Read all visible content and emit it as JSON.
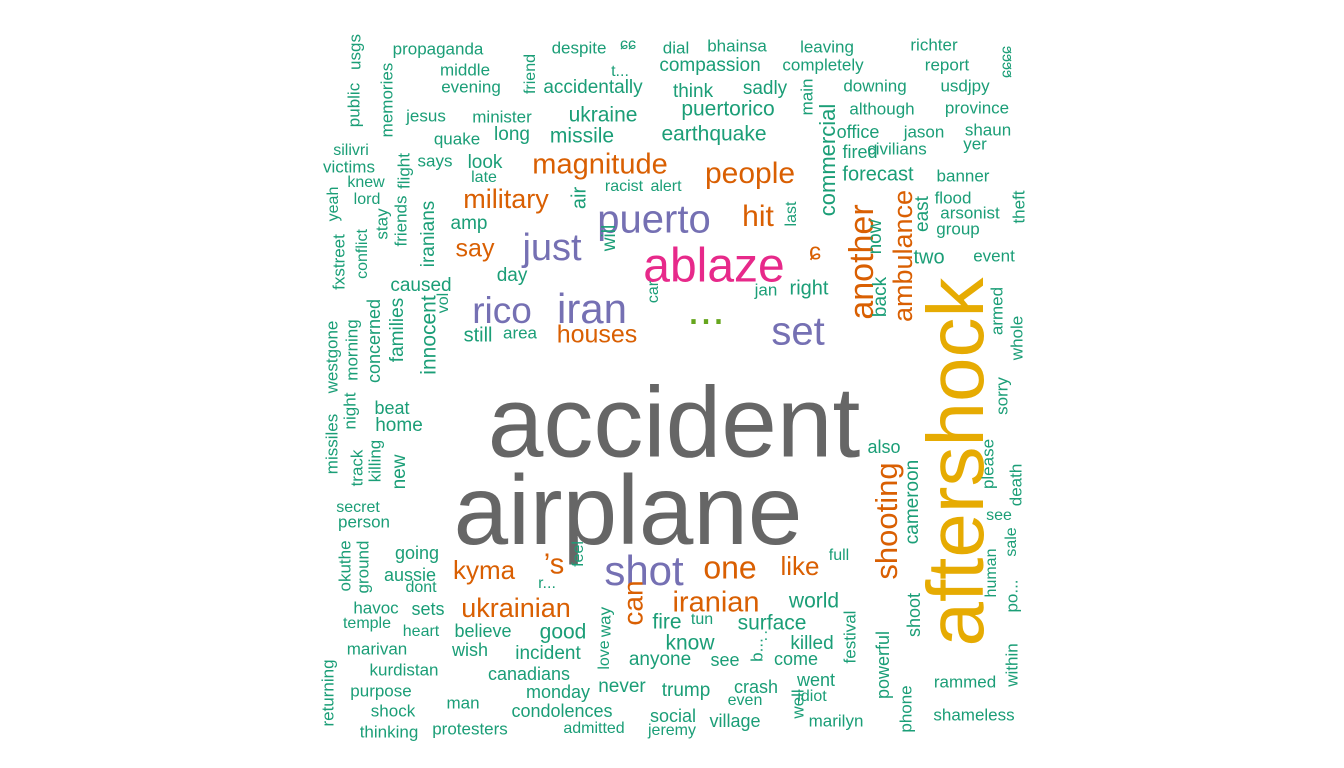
{
  "chart_data": {
    "type": "wordcloud",
    "palette": {
      "gray": "#666666",
      "gold": "#e6ab02",
      "pink": "#e7298a",
      "purple": "#7570b3",
      "orange": "#d95f02",
      "green": "#66a61e",
      "teal": "#1b9e77"
    },
    "words": [
      {
        "text": "accident",
        "weight": 100,
        "color_group": "gray"
      },
      {
        "text": "airplane",
        "weight": 98,
        "color_group": "gray"
      },
      {
        "text": "aftershock",
        "weight": 82,
        "color_group": "gold"
      },
      {
        "text": "ablaze",
        "weight": 48,
        "color_group": "pink"
      },
      {
        "text": "...",
        "weight": 45,
        "color_group": "green"
      },
      {
        "text": "shot",
        "weight": 42,
        "color_group": "purple"
      },
      {
        "text": "iran",
        "weight": 42,
        "color_group": "purple"
      },
      {
        "text": "puerto",
        "weight": 40,
        "color_group": "purple"
      },
      {
        "text": "set",
        "weight": 40,
        "color_group": "purple"
      },
      {
        "text": "just",
        "weight": 38,
        "color_group": "purple"
      },
      {
        "text": "rico",
        "weight": 37,
        "color_group": "purple"
      },
      {
        "text": "another",
        "weight": 34,
        "color_group": "orange"
      },
      {
        "text": "one",
        "weight": 32,
        "color_group": "orange"
      },
      {
        "text": "shooting",
        "weight": 31,
        "color_group": "orange"
      },
      {
        "text": "people",
        "weight": 30,
        "color_group": "orange"
      },
      {
        "text": "hit",
        "weight": 30,
        "color_group": "orange"
      },
      {
        "text": "magnitude",
        "weight": 29,
        "color_group": "orange"
      },
      {
        "text": "iranian",
        "weight": 29,
        "color_group": "orange"
      },
      {
        "text": "’s",
        "weight": 29,
        "color_group": "orange"
      },
      {
        "text": "can",
        "weight": 28,
        "color_group": "orange"
      },
      {
        "text": "ukrainian",
        "weight": 27,
        "color_group": "orange"
      },
      {
        "text": "military",
        "weight": 27,
        "color_group": "orange"
      },
      {
        "text": "ambulance",
        "weight": 27,
        "color_group": "orange"
      },
      {
        "text": "kyma",
        "weight": 26,
        "color_group": "orange"
      },
      {
        "text": "like",
        "weight": 26,
        "color_group": "orange"
      },
      {
        "text": "say",
        "weight": 25,
        "color_group": "orange"
      },
      {
        "text": "houses",
        "weight": 25,
        "color_group": "orange"
      },
      {
        "text": "ɕ",
        "weight": 24,
        "color_group": "orange"
      },
      {
        "text": "commercial",
        "weight": 22,
        "color_group": "teal"
      },
      {
        "text": "earthquake",
        "weight": 21,
        "color_group": "teal"
      },
      {
        "text": "ukraine",
        "weight": 21,
        "color_group": "teal"
      },
      {
        "text": "missile",
        "weight": 21,
        "color_group": "teal"
      },
      {
        "text": "puertorico",
        "weight": 21,
        "color_group": "teal"
      },
      {
        "text": "innocent",
        "weight": 21,
        "color_group": "teal"
      },
      {
        "text": "world",
        "weight": 21,
        "color_group": "teal"
      },
      {
        "text": "surface",
        "weight": 21,
        "color_group": "teal"
      },
      {
        "text": "know",
        "weight": 21,
        "color_group": "teal"
      },
      {
        "text": "good",
        "weight": 21,
        "color_group": "teal"
      },
      {
        "text": "fire",
        "weight": 21,
        "color_group": "teal"
      },
      {
        "text": "right",
        "weight": 20,
        "color_group": "teal"
      },
      {
        "text": "two",
        "weight": 20,
        "color_group": "teal"
      },
      {
        "text": "forecast",
        "weight": 20,
        "color_group": "teal"
      },
      {
        "text": "air",
        "weight": 20,
        "color_group": "teal"
      },
      {
        "text": "still",
        "weight": 20,
        "color_group": "teal"
      },
      {
        "text": "caused",
        "weight": 19,
        "color_group": "teal"
      },
      {
        "text": "day",
        "weight": 19,
        "color_group": "teal"
      },
      {
        "text": "families",
        "weight": 19,
        "color_group": "teal"
      },
      {
        "text": "home",
        "weight": 19,
        "color_group": "teal"
      },
      {
        "text": "never",
        "weight": 19,
        "color_group": "teal"
      },
      {
        "text": "trump",
        "weight": 19,
        "color_group": "teal"
      },
      {
        "text": "anyone",
        "weight": 19,
        "color_group": "teal"
      },
      {
        "text": "incident",
        "weight": 19,
        "color_group": "teal"
      },
      {
        "text": "will",
        "weight": 19,
        "color_group": "teal"
      },
      {
        "text": "killed",
        "weight": 19,
        "color_group": "teal"
      },
      {
        "text": "compassion",
        "weight": 19,
        "color_group": "teal"
      },
      {
        "text": "accidentally",
        "weight": 19,
        "color_group": "teal"
      },
      {
        "text": "think",
        "weight": 19,
        "color_group": "teal"
      },
      {
        "text": "sadly",
        "weight": 19,
        "color_group": "teal"
      },
      {
        "text": "long",
        "weight": 19,
        "color_group": "teal"
      },
      {
        "text": "look",
        "weight": 19,
        "color_group": "teal"
      },
      {
        "text": "amp",
        "weight": 19,
        "color_group": "teal"
      },
      {
        "text": "cameroon",
        "weight": 19,
        "color_group": "teal"
      },
      {
        "text": "now",
        "weight": 19,
        "color_group": "teal"
      },
      {
        "text": "back",
        "weight": 19,
        "color_group": "teal"
      },
      {
        "text": "new",
        "weight": 19,
        "color_group": "teal"
      },
      {
        "text": "iranians",
        "weight": 19,
        "color_group": "teal"
      },
      {
        "text": "east",
        "weight": 19,
        "color_group": "teal"
      },
      {
        "text": "also",
        "weight": 18,
        "color_group": "teal"
      },
      {
        "text": "powerful",
        "weight": 18,
        "color_group": "teal"
      },
      {
        "text": "going",
        "weight": 18,
        "color_group": "teal"
      },
      {
        "text": "aussie",
        "weight": 18,
        "color_group": "teal"
      },
      {
        "text": "beat",
        "weight": 18,
        "color_group": "teal"
      },
      {
        "text": "concerned",
        "weight": 18,
        "color_group": "teal"
      },
      {
        "text": "wish",
        "weight": 18,
        "color_group": "teal"
      },
      {
        "text": "believe",
        "weight": 18,
        "color_group": "teal"
      },
      {
        "text": "sets",
        "weight": 18,
        "color_group": "teal"
      },
      {
        "text": "canadians",
        "weight": 18,
        "color_group": "teal"
      },
      {
        "text": "monday",
        "weight": 18,
        "color_group": "teal"
      },
      {
        "text": "condolences",
        "weight": 18,
        "color_group": "teal"
      },
      {
        "text": "social",
        "weight": 18,
        "color_group": "teal"
      },
      {
        "text": "village",
        "weight": 18,
        "color_group": "teal"
      },
      {
        "text": "crash",
        "weight": 18,
        "color_group": "teal"
      },
      {
        "text": "see",
        "weight": 18,
        "color_group": "teal"
      },
      {
        "text": "come",
        "weight": 18,
        "color_group": "teal"
      },
      {
        "text": "went",
        "weight": 18,
        "color_group": "teal"
      },
      {
        "text": "shoot",
        "weight": 18,
        "color_group": "teal"
      },
      {
        "text": "office",
        "weight": 18,
        "color_group": "teal"
      },
      {
        "text": "fired",
        "weight": 18,
        "color_group": "teal"
      },
      {
        "text": "main",
        "weight": 17,
        "color_group": "teal"
      },
      {
        "text": "middle",
        "weight": 17,
        "color_group": "teal"
      },
      {
        "text": "evening",
        "weight": 17,
        "color_group": "teal"
      },
      {
        "text": "minister",
        "weight": 17,
        "color_group": "teal"
      },
      {
        "text": "quake",
        "weight": 17,
        "color_group": "teal"
      },
      {
        "text": "says",
        "weight": 17,
        "color_group": "teal"
      },
      {
        "text": "jesus",
        "weight": 17,
        "color_group": "teal"
      },
      {
        "text": "propaganda",
        "weight": 17,
        "color_group": "teal"
      },
      {
        "text": "despite",
        "weight": 17,
        "color_group": "teal"
      },
      {
        "text": "dial",
        "weight": 17,
        "color_group": "teal"
      },
      {
        "text": "bhainsa",
        "weight": 17,
        "color_group": "teal"
      },
      {
        "text": "leaving",
        "weight": 17,
        "color_group": "teal"
      },
      {
        "text": "richter",
        "weight": 17,
        "color_group": "teal"
      },
      {
        "text": "report",
        "weight": 17,
        "color_group": "teal"
      },
      {
        "text": "completely",
        "weight": 17,
        "color_group": "teal"
      },
      {
        "text": "downing",
        "weight": 17,
        "color_group": "teal"
      },
      {
        "text": "usdjpy",
        "weight": 17,
        "color_group": "teal"
      },
      {
        "text": "although",
        "weight": 17,
        "color_group": "teal"
      },
      {
        "text": "province",
        "weight": 17,
        "color_group": "teal"
      },
      {
        "text": "jason",
        "weight": 17,
        "color_group": "teal"
      },
      {
        "text": "shaun",
        "weight": 17,
        "color_group": "teal"
      },
      {
        "text": "civilians",
        "weight": 17,
        "color_group": "teal"
      },
      {
        "text": "yer",
        "weight": 17,
        "color_group": "teal"
      },
      {
        "text": "banner",
        "weight": 17,
        "color_group": "teal"
      },
      {
        "text": "flood",
        "weight": 17,
        "color_group": "teal"
      },
      {
        "text": "arsonist",
        "weight": 17,
        "color_group": "teal"
      },
      {
        "text": "group",
        "weight": 17,
        "color_group": "teal"
      },
      {
        "text": "theft",
        "weight": 17,
        "color_group": "teal"
      },
      {
        "text": "event",
        "weight": 17,
        "color_group": "teal"
      },
      {
        "text": "racist",
        "weight": 17,
        "color_group": "teal"
      },
      {
        "text": "alert",
        "weight": 17,
        "color_group": "teal"
      },
      {
        "text": "late",
        "weight": 16,
        "color_group": "teal"
      },
      {
        "text": "last",
        "weight": 16,
        "color_group": "teal"
      },
      {
        "text": "car",
        "weight": 16,
        "color_group": "teal"
      },
      {
        "text": "jan",
        "weight": 17,
        "color_group": "teal"
      },
      {
        "text": "area",
        "weight": 17,
        "color_group": "teal"
      },
      {
        "text": "vol",
        "weight": 16,
        "color_group": "teal"
      },
      {
        "text": "armed",
        "weight": 17,
        "color_group": "teal"
      },
      {
        "text": "whole",
        "weight": 17,
        "color_group": "teal"
      },
      {
        "text": "sorry",
        "weight": 17,
        "color_group": "teal"
      },
      {
        "text": "please",
        "weight": 17,
        "color_group": "teal"
      },
      {
        "text": "death",
        "weight": 17,
        "color_group": "teal"
      },
      {
        "text": "sale",
        "weight": 16,
        "color_group": "teal"
      },
      {
        "text": "see",
        "weight": 16,
        "color_group": "teal"
      },
      {
        "text": "human",
        "weight": 16,
        "color_group": "teal"
      },
      {
        "text": "po...",
        "weight": 17,
        "color_group": "teal"
      },
      {
        "text": "within",
        "weight": 17,
        "color_group": "teal"
      },
      {
        "text": "rammed",
        "weight": 17,
        "color_group": "teal"
      },
      {
        "text": "shameless",
        "weight": 17,
        "color_group": "teal"
      },
      {
        "text": "phone",
        "weight": 17,
        "color_group": "teal"
      },
      {
        "text": "festival",
        "weight": 17,
        "color_group": "teal"
      },
      {
        "text": "full",
        "weight": 16,
        "color_group": "teal"
      },
      {
        "text": "feel",
        "weight": 16,
        "color_group": "teal"
      },
      {
        "text": "way",
        "weight": 17,
        "color_group": "teal"
      },
      {
        "text": "love",
        "weight": 16,
        "color_group": "teal"
      },
      {
        "text": "tun",
        "weight": 16,
        "color_group": "teal"
      },
      {
        "text": "b...",
        "weight": 17,
        "color_group": "teal"
      },
      {
        "text": "idiot",
        "weight": 16,
        "color_group": "teal"
      },
      {
        "text": "marilyn",
        "weight": 17,
        "color_group": "teal"
      },
      {
        "text": "well",
        "weight": 17,
        "color_group": "teal"
      },
      {
        "text": "even",
        "weight": 16,
        "color_group": "teal"
      },
      {
        "text": "jeremy",
        "weight": 16,
        "color_group": "teal"
      },
      {
        "text": "admitted",
        "weight": 16,
        "color_group": "teal"
      },
      {
        "text": "protesters",
        "weight": 17,
        "color_group": "teal"
      },
      {
        "text": "thinking",
        "weight": 17,
        "color_group": "teal"
      },
      {
        "text": "man",
        "weight": 17,
        "color_group": "teal"
      },
      {
        "text": "shock",
        "weight": 17,
        "color_group": "teal"
      },
      {
        "text": "purpose",
        "weight": 17,
        "color_group": "teal"
      },
      {
        "text": "returning",
        "weight": 17,
        "color_group": "teal"
      },
      {
        "text": "kurdistan",
        "weight": 17,
        "color_group": "teal"
      },
      {
        "text": "marivan",
        "weight": 17,
        "color_group": "teal"
      },
      {
        "text": "heart",
        "weight": 16,
        "color_group": "teal"
      },
      {
        "text": "temple",
        "weight": 16,
        "color_group": "teal"
      },
      {
        "text": "havoc",
        "weight": 17,
        "color_group": "teal"
      },
      {
        "text": "dont",
        "weight": 16,
        "color_group": "teal"
      },
      {
        "text": "okuthe",
        "weight": 17,
        "color_group": "teal"
      },
      {
        "text": "ground",
        "weight": 17,
        "color_group": "teal"
      },
      {
        "text": "r...",
        "weight": 16,
        "color_group": "teal"
      },
      {
        "text": "person",
        "weight": 17,
        "color_group": "teal"
      },
      {
        "text": "secret",
        "weight": 16,
        "color_group": "teal"
      },
      {
        "text": "killing",
        "weight": 17,
        "color_group": "teal"
      },
      {
        "text": "track",
        "weight": 17,
        "color_group": "teal"
      },
      {
        "text": "missiles",
        "weight": 17,
        "color_group": "teal"
      },
      {
        "text": "westgone",
        "weight": 17,
        "color_group": "teal"
      },
      {
        "text": "night",
        "weight": 17,
        "color_group": "teal"
      },
      {
        "text": "morning",
        "weight": 17,
        "color_group": "teal"
      },
      {
        "text": "fxstreet",
        "weight": 17,
        "color_group": "teal"
      },
      {
        "text": "conflict",
        "weight": 16,
        "color_group": "teal"
      },
      {
        "text": "stay",
        "weight": 17,
        "color_group": "teal"
      },
      {
        "text": "friends",
        "weight": 17,
        "color_group": "teal"
      },
      {
        "text": "lord",
        "weight": 16,
        "color_group": "teal"
      },
      {
        "text": "yeah",
        "weight": 16,
        "color_group": "teal"
      },
      {
        "text": "flight",
        "weight": 17,
        "color_group": "teal"
      },
      {
        "text": "knew",
        "weight": 16,
        "color_group": "teal"
      },
      {
        "text": "victims",
        "weight": 17,
        "color_group": "teal"
      },
      {
        "text": "silivri",
        "weight": 16,
        "color_group": "teal"
      },
      {
        "text": "public",
        "weight": 17,
        "color_group": "teal"
      },
      {
        "text": "usgs",
        "weight": 17,
        "color_group": "teal"
      },
      {
        "text": "memories",
        "weight": 17,
        "color_group": "teal"
      },
      {
        "text": "friend",
        "weight": 16,
        "color_group": "teal"
      },
      {
        "text": "t...",
        "weight": 16,
        "color_group": "teal"
      },
      {
        "text": "ɕɕ",
        "weight": 16,
        "color_group": "teal"
      },
      {
        "text": "ɕɕɕɕ",
        "weight": 16,
        "color_group": "teal"
      },
      {
        "text": ":",
        "weight": 16,
        "color_group": "teal"
      }
    ]
  }
}
